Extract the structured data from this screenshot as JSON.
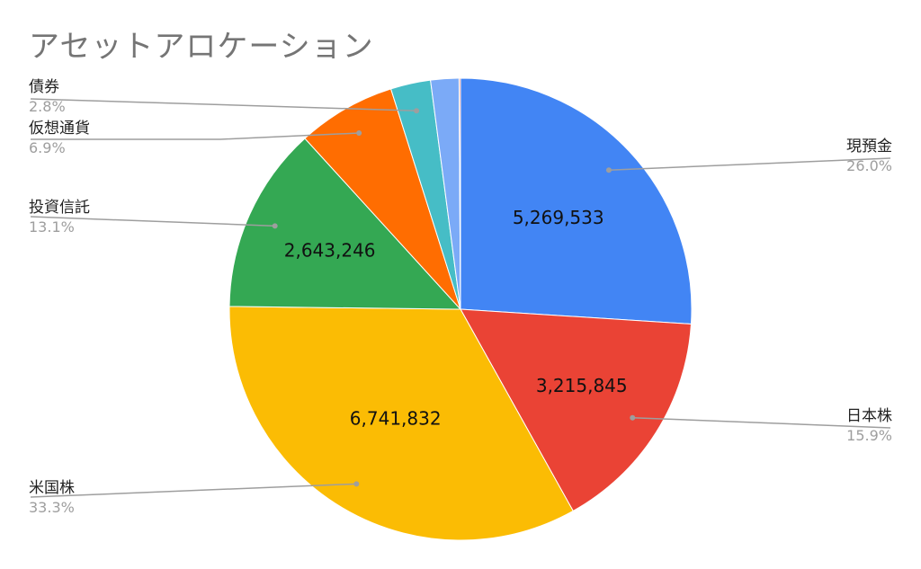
{
  "chart_data": {
    "type": "pie",
    "title": "アセットアロケーション",
    "slices": [
      {
        "label": "現預金",
        "value": 5269533,
        "value_label": "5,269,533",
        "percent_label": "26.0%",
        "color": "#4285F4",
        "show_value": true
      },
      {
        "label": "日本株",
        "value": 3215845,
        "value_label": "3,215,845",
        "percent_label": "15.9%",
        "color": "#EA4335",
        "show_value": true
      },
      {
        "label": "米国株",
        "value": 6741832,
        "value_label": "6,741,832",
        "percent_label": "33.3%",
        "color": "#FBBC04",
        "show_value": true
      },
      {
        "label": "投資信託",
        "value": 2643246,
        "value_label": "2,643,246",
        "percent_label": "13.1%",
        "color": "#34A853",
        "show_value": true
      },
      {
        "label": "仮想通貨",
        "value": 1395000,
        "value_label": "",
        "percent_label": "6.9%",
        "color": "#FF6D01",
        "show_value": false
      },
      {
        "label": "債券",
        "value": 566000,
        "value_label": "",
        "percent_label": "2.8%",
        "color": "#46BDC6",
        "show_value": false
      },
      {
        "label": "",
        "value": 400000,
        "value_label": "",
        "percent_label": "",
        "color": "#7BAAF7",
        "show_value": false
      },
      {
        "label": "",
        "value": 20000,
        "value_label": "",
        "percent_label": "",
        "color": "#F07B72",
        "show_value": false
      }
    ]
  }
}
